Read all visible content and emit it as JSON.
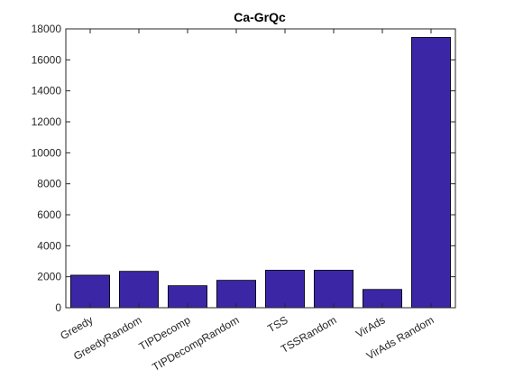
{
  "chart_data": {
    "type": "bar",
    "title": "Ca-GrQc",
    "xlabel": "",
    "ylabel": "",
    "categories": [
      "Greedy",
      "GreedyRandom",
      "TIPDecomp",
      "TIPDecompRandom",
      "TSS",
      "TSSRandom",
      "VirAds",
      "VirAds Random"
    ],
    "values": [
      2100,
      2350,
      1420,
      1770,
      2420,
      2420,
      1180,
      17450
    ],
    "ylim": [
      0,
      18000
    ],
    "yticks": [
      0,
      2000,
      4000,
      6000,
      8000,
      10000,
      12000,
      14000,
      16000,
      18000
    ],
    "grid": false,
    "legend": "none",
    "colors": {
      "bar_fill": "#3b27a6",
      "bar_stroke": "#000000",
      "axis": "#262626"
    }
  }
}
